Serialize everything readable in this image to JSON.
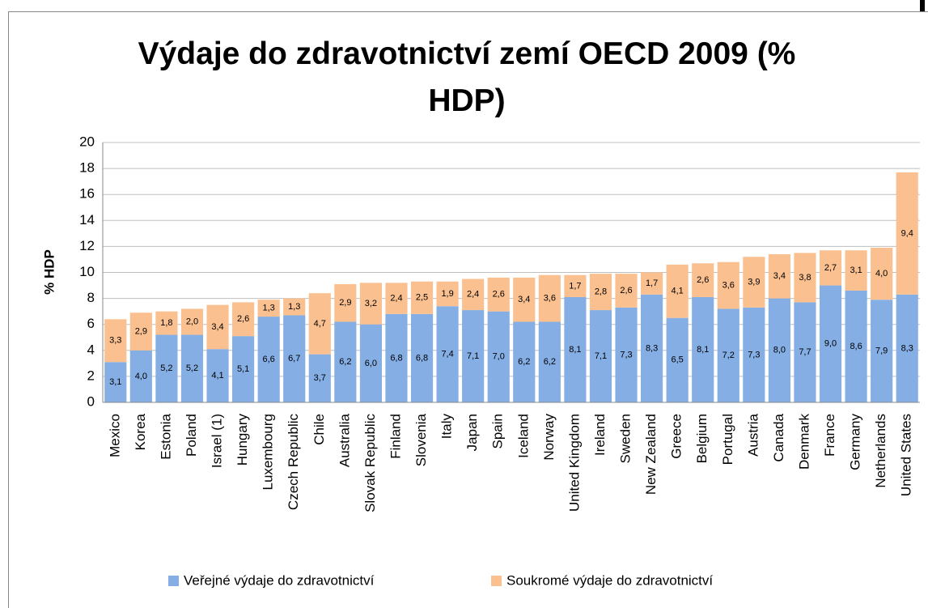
{
  "chart_data": {
    "type": "stacked_bar",
    "title": "Výdaje do zdravotnictví zemí OECD 2009 (% HDP)",
    "y_label": "% HDP",
    "categories": [
      "Mexico",
      "Korea",
      "Estonia",
      "Poland",
      "Israel  (1)",
      "Hungary",
      "Luxembourg",
      "Czech Republic",
      "Chile",
      "Australia",
      "Slovak Republic",
      "Finland",
      "Slovenia",
      "Italy",
      "Japan",
      "Spain",
      "Iceland",
      "Norway",
      "United Kingdom",
      "Ireland",
      "Sweden",
      "New Zealand",
      "Greece",
      "Belgium",
      "Portugal",
      "Austria",
      "Canada",
      "Denmark",
      "France",
      "Germany",
      "Netherlands",
      "United States"
    ],
    "series": [
      {
        "name": "Veřejné výdaje do zdravotnictví",
        "color": "#84aee4",
        "values": [
          3.1,
          4.0,
          5.2,
          5.2,
          4.1,
          5.1,
          6.6,
          6.7,
          3.7,
          6.2,
          6.0,
          6.8,
          6.8,
          7.4,
          7.1,
          7.0,
          6.2,
          6.2,
          8.1,
          7.1,
          7.3,
          8.3,
          6.5,
          8.1,
          7.2,
          7.3,
          8.0,
          7.7,
          9.0,
          8.6,
          7.9,
          8.3
        ],
        "value_labels": [
          "3,1",
          "4,0",
          "5,2",
          "5,2",
          "4,1",
          "5,1",
          "6,6",
          "6,7",
          "3,7",
          "6,2",
          "6,0",
          "6,8",
          "6,8",
          "7,4",
          "7,1",
          "7,0",
          "6,2",
          "6,2",
          "8,1",
          "7,1",
          "7,3",
          "8,3",
          "6,5",
          "8,1",
          "7,2",
          "7,3",
          "8,0",
          "7,7",
          "9,0",
          "8,6",
          "7,9",
          "8,3"
        ]
      },
      {
        "name": "Soukromé výdaje do zdravotnictví",
        "color": "#fac090",
        "values": [
          3.3,
          2.9,
          1.8,
          2.0,
          3.4,
          2.6,
          1.3,
          1.3,
          4.7,
          2.9,
          3.2,
          2.4,
          2.5,
          1.9,
          2.4,
          2.6,
          3.4,
          3.6,
          1.7,
          2.8,
          2.6,
          1.7,
          4.1,
          2.6,
          3.6,
          3.9,
          3.4,
          3.8,
          2.7,
          3.1,
          4.0,
          9.4
        ],
        "value_labels": [
          "3,3",
          "2,9",
          "1,8",
          "2,0",
          "3,4",
          "2,6",
          "1,3",
          "1,3",
          "4,7",
          "2,9",
          "3,2",
          "2,4",
          "2,5",
          "1,9",
          "2,4",
          "2,6",
          "3,4",
          "3,6",
          "1,7",
          "2,8",
          "2,6",
          "1,7",
          "4,1",
          "2,6",
          "3,6",
          "3,9",
          "3,4",
          "3,8",
          "2,7",
          "3,1",
          "4,0",
          "9,4"
        ]
      }
    ],
    "ylim": [
      0,
      20
    ],
    "yticks": [
      0,
      2,
      4,
      6,
      8,
      10,
      12,
      14,
      16,
      18,
      20
    ],
    "grid": true,
    "legend": "bottom"
  }
}
